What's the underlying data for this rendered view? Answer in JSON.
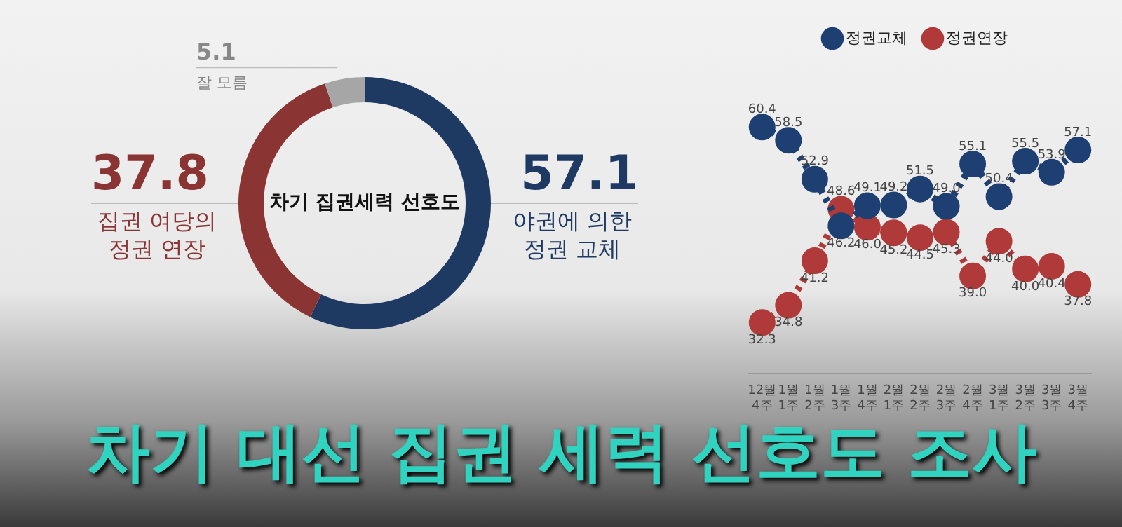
{
  "chart_data": [
    {
      "type": "donut",
      "title": "차기 집권세력 선호도",
      "categories": [
        "야권에 의한 정권 교체",
        "집권 여당의 정권 연장",
        "잘 모름"
      ],
      "values": [
        57.1,
        37.8,
        5.1
      ],
      "colors": [
        "#1e3a63",
        "#8b3434",
        "#a6a6a6"
      ],
      "data_labels": true,
      "annotations": [
        "차기 대선 집권 세력 선호도 조사"
      ]
    },
    {
      "type": "line",
      "categories": [
        "12월 4주",
        "1월 1주",
        "1월 2주",
        "1월 3주",
        "1월 4주",
        "2월 1주",
        "2월 2주",
        "2월 3주",
        "2월 4주",
        "3월 1주",
        "3월 2주",
        "3월 3주",
        "3월 4주"
      ],
      "series": [
        {
          "name": "정권교체",
          "color": "#1e3f72",
          "values": [
            60.4,
            58.5,
            52.9,
            46.2,
            49.1,
            49.2,
            51.5,
            49.0,
            55.1,
            50.4,
            55.5,
            53.9,
            57.1
          ],
          "value_labels": [
            "60.4",
            "58.5",
            "52.9",
            "46.2",
            "49.1",
            "49.2",
            "51.5",
            "49.0",
            "55.1",
            "50.4",
            "55.5",
            "53.9",
            "57.1"
          ]
        },
        {
          "name": "정권연장",
          "color": "#b03a3a",
          "values": [
            32.3,
            34.8,
            41.2,
            48.6,
            46.0,
            45.2,
            44.5,
            45.3,
            39.0,
            44.0,
            40.0,
            40.4,
            37.8
          ],
          "value_labels": [
            "32.3",
            "34.8",
            "41.2",
            "48.6",
            "46.0",
            "45.2",
            "44.5",
            "45.3",
            "39.0",
            "44.0",
            "40.0",
            "40.4",
            "37.8"
          ]
        }
      ],
      "data_labels": true,
      "marker": "circle",
      "line_style": "dotted",
      "legend": "top",
      "grid": false
    }
  ]
}
